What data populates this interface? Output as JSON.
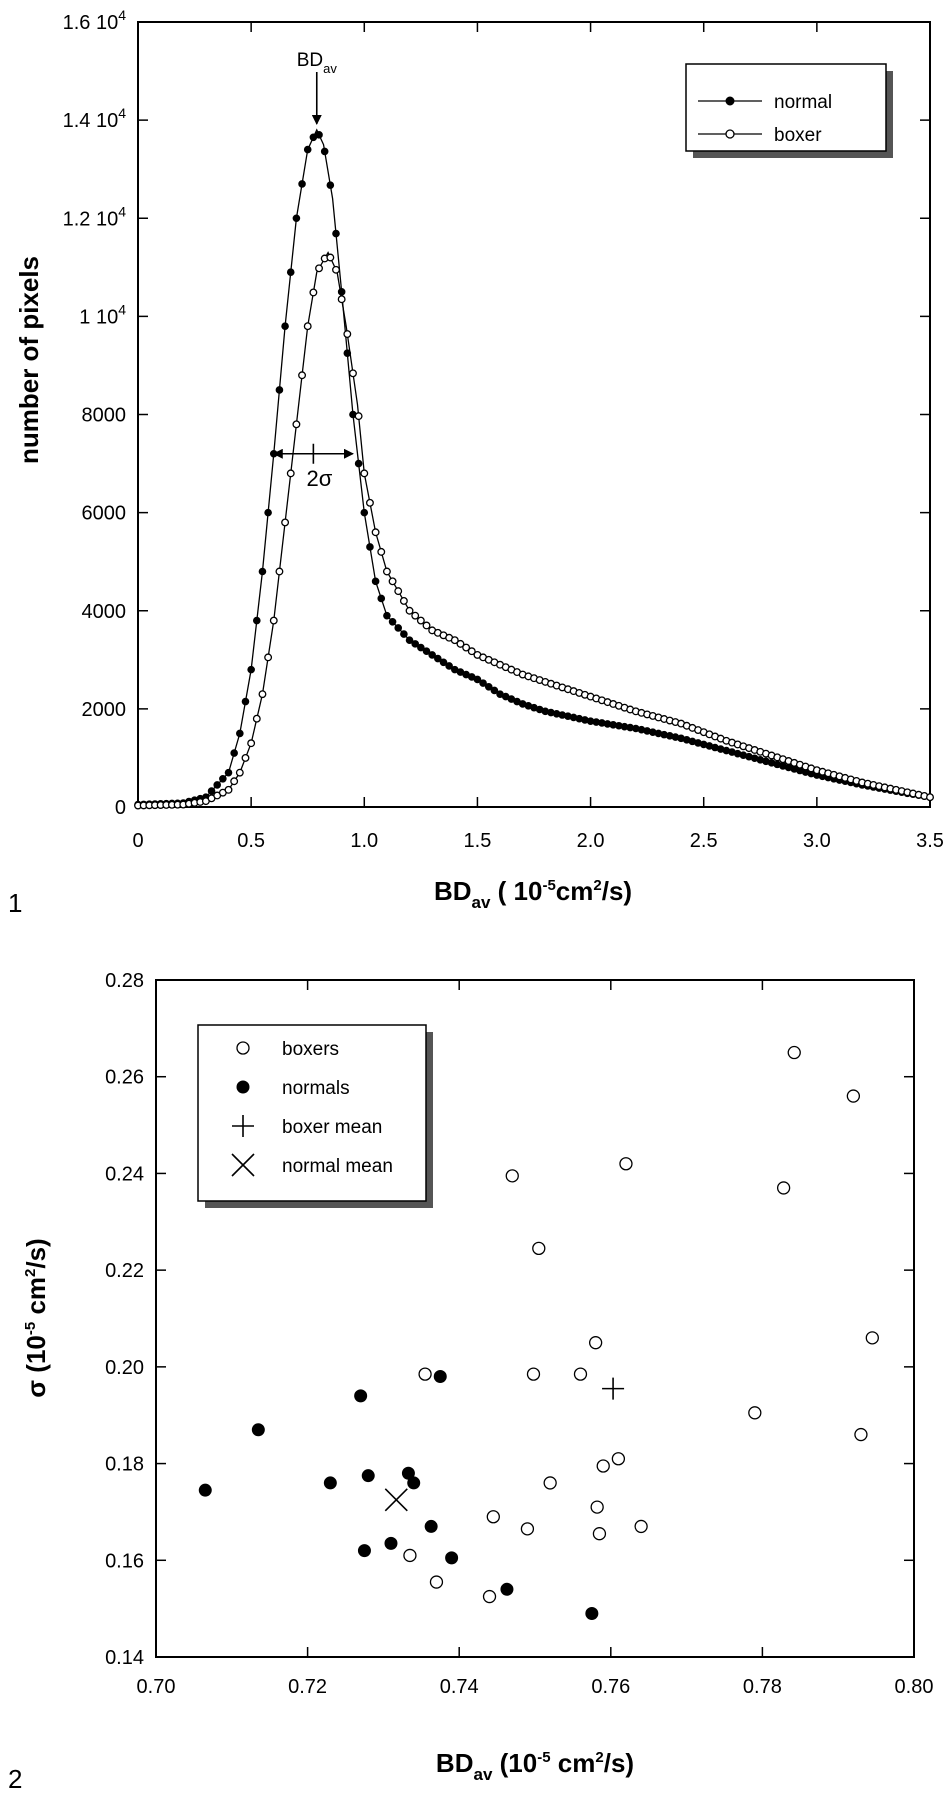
{
  "chart_data": [
    {
      "type": "line",
      "panel_label": "1",
      "xlabel": {
        "main": "BD",
        "sub": "av",
        "unit_pre": " ( 10",
        "unit_exp": "-5",
        "unit_mid": "cm",
        "unit_exp2": "2",
        "unit_post": "/s)"
      },
      "ylabel": "number of pixels",
      "xlim": [
        0,
        3.5
      ],
      "ylim": [
        0,
        16000
      ],
      "x_ticks": [
        {
          "v": 0,
          "label": "0"
        },
        {
          "v": 0.5,
          "label": "0.5"
        },
        {
          "v": 1.0,
          "label": "1.0"
        },
        {
          "v": 1.5,
          "label": "1.5"
        },
        {
          "v": 2.0,
          "label": "2.0"
        },
        {
          "v": 2.5,
          "label": "2.5"
        },
        {
          "v": 3.0,
          "label": "3.0"
        },
        {
          "v": 3.5,
          "label": "3.5"
        }
      ],
      "y_ticks": [
        {
          "v": 0,
          "label": "0"
        },
        {
          "v": 2000,
          "label": "2000"
        },
        {
          "v": 4000,
          "label": "4000"
        },
        {
          "v": 6000,
          "label": "6000"
        },
        {
          "v": 8000,
          "label": "8000"
        },
        {
          "v": 10000,
          "label": "1 10",
          "exp": "4"
        },
        {
          "v": 12000,
          "label": "1.2 10",
          "exp": "4"
        },
        {
          "v": 14000,
          "label": "1.4 10",
          "exp": "4"
        },
        {
          "v": 16000,
          "label": "1.6 10",
          "exp": "4"
        }
      ],
      "legend_position": "top-right",
      "series": [
        {
          "name": "normal",
          "marker": "filled-circle",
          "points": [
            [
              0,
              50
            ],
            [
              0.2,
              80
            ],
            [
              0.3,
              200
            ],
            [
              0.4,
              700
            ],
            [
              0.45,
              1500
            ],
            [
              0.5,
              2800
            ],
            [
              0.55,
              4800
            ],
            [
              0.6,
              7200
            ],
            [
              0.65,
              9800
            ],
            [
              0.7,
              12000
            ],
            [
              0.75,
              13400
            ],
            [
              0.79,
              13800
            ],
            [
              0.82,
              13500
            ],
            [
              0.86,
              12400
            ],
            [
              0.9,
              10500
            ],
            [
              0.95,
              8000
            ],
            [
              1.0,
              6000
            ],
            [
              1.05,
              4600
            ],
            [
              1.1,
              3900
            ],
            [
              1.2,
              3400
            ],
            [
              1.3,
              3100
            ],
            [
              1.4,
              2800
            ],
            [
              1.5,
              2600
            ],
            [
              1.6,
              2300
            ],
            [
              1.7,
              2100
            ],
            [
              1.8,
              1950
            ],
            [
              1.9,
              1850
            ],
            [
              2.0,
              1750
            ],
            [
              2.2,
              1600
            ],
            [
              2.4,
              1400
            ],
            [
              2.6,
              1150
            ],
            [
              2.8,
              900
            ],
            [
              3.0,
              650
            ],
            [
              3.2,
              450
            ],
            [
              3.4,
              280
            ],
            [
              3.5,
              200
            ]
          ]
        },
        {
          "name": "boxer",
          "marker": "open-circle",
          "points": [
            [
              0,
              30
            ],
            [
              0.2,
              50
            ],
            [
              0.3,
              120
            ],
            [
              0.4,
              350
            ],
            [
              0.45,
              700
            ],
            [
              0.5,
              1300
            ],
            [
              0.55,
              2300
            ],
            [
              0.6,
              3800
            ],
            [
              0.65,
              5800
            ],
            [
              0.7,
              7800
            ],
            [
              0.75,
              9800
            ],
            [
              0.79,
              10900
            ],
            [
              0.84,
              11300
            ],
            [
              0.88,
              10900
            ],
            [
              0.92,
              9800
            ],
            [
              0.97,
              8200
            ],
            [
              1.0,
              6800
            ],
            [
              1.05,
              5600
            ],
            [
              1.1,
              4800
            ],
            [
              1.2,
              4000
            ],
            [
              1.3,
              3600
            ],
            [
              1.4,
              3400
            ],
            [
              1.5,
              3100
            ],
            [
              1.6,
              2900
            ],
            [
              1.7,
              2700
            ],
            [
              1.8,
              2550
            ],
            [
              1.9,
              2400
            ],
            [
              2.0,
              2250
            ],
            [
              2.2,
              1950
            ],
            [
              2.4,
              1700
            ],
            [
              2.6,
              1350
            ],
            [
              2.8,
              1050
            ],
            [
              3.0,
              750
            ],
            [
              3.2,
              500
            ],
            [
              3.4,
              300
            ],
            [
              3.5,
              200
            ]
          ]
        }
      ],
      "annotations": {
        "peak_label_main": "BD",
        "peak_label_sub": "av",
        "peak_x": 0.79,
        "width_label_pre": "2",
        "width_label_sym": "σ",
        "width_range": [
          0.6,
          0.95
        ],
        "width_y": 7200
      }
    },
    {
      "type": "scatter",
      "panel_label": "2",
      "xlabel": {
        "main": "BD",
        "sub": "av",
        "unit_pre": " (10",
        "unit_exp": "-5",
        "unit_mid": " cm",
        "unit_exp2": "2",
        "unit_post": "/s)"
      },
      "ylabel": {
        "main": "σ",
        "unit_pre": " (10",
        "unit_exp": "-5",
        "unit_mid": " cm",
        "unit_exp2": "2",
        "unit_post": "/s)"
      },
      "xlim": [
        0.7,
        0.8
      ],
      "ylim": [
        0.14,
        0.28
      ],
      "x_ticks": [
        {
          "v": 0.7,
          "label": "0.70"
        },
        {
          "v": 0.72,
          "label": "0.72"
        },
        {
          "v": 0.74,
          "label": "0.74"
        },
        {
          "v": 0.76,
          "label": "0.76"
        },
        {
          "v": 0.78,
          "label": "0.78"
        },
        {
          "v": 0.8,
          "label": "0.80"
        }
      ],
      "y_ticks": [
        {
          "v": 0.14,
          "label": "0.14"
        },
        {
          "v": 0.16,
          "label": "0.16"
        },
        {
          "v": 0.18,
          "label": "0.18"
        },
        {
          "v": 0.2,
          "label": "0.20"
        },
        {
          "v": 0.22,
          "label": "0.22"
        },
        {
          "v": 0.24,
          "label": "0.24"
        },
        {
          "v": 0.26,
          "label": "0.26"
        },
        {
          "v": 0.28,
          "label": "0.28"
        }
      ],
      "legend_position": "top-left",
      "series": [
        {
          "name": "boxers",
          "marker": "open-circle",
          "points": [
            [
              0.7335,
              0.161
            ],
            [
              0.7355,
              0.1985
            ],
            [
              0.737,
              0.1555
            ],
            [
              0.744,
              0.1525
            ],
            [
              0.7445,
              0.169
            ],
            [
              0.747,
              0.2395
            ],
            [
              0.749,
              0.1665
            ],
            [
              0.7498,
              0.1985
            ],
            [
              0.7505,
              0.2245
            ],
            [
              0.752,
              0.176
            ],
            [
              0.756,
              0.1985
            ],
            [
              0.758,
              0.205
            ],
            [
              0.7582,
              0.171
            ],
            [
              0.7585,
              0.1655
            ],
            [
              0.759,
              0.1795
            ],
            [
              0.761,
              0.181
            ],
            [
              0.762,
              0.242
            ],
            [
              0.764,
              0.167
            ],
            [
              0.779,
              0.1905
            ],
            [
              0.7828,
              0.237
            ],
            [
              0.7842,
              0.265
            ],
            [
              0.792,
              0.256
            ],
            [
              0.793,
              0.186
            ],
            [
              0.7945,
              0.206
            ]
          ]
        },
        {
          "name": "normals",
          "marker": "filled-circle",
          "points": [
            [
              0.7065,
              0.1745
            ],
            [
              0.7135,
              0.187
            ],
            [
              0.723,
              0.176
            ],
            [
              0.727,
              0.194
            ],
            [
              0.7275,
              0.162
            ],
            [
              0.728,
              0.1775
            ],
            [
              0.731,
              0.1635
            ],
            [
              0.7333,
              0.178
            ],
            [
              0.734,
              0.176
            ],
            [
              0.7363,
              0.167
            ],
            [
              0.7375,
              0.198
            ],
            [
              0.739,
              0.1605
            ],
            [
              0.7463,
              0.154
            ],
            [
              0.7575,
              0.149
            ]
          ]
        },
        {
          "name": "boxer mean",
          "marker": "plus",
          "points": [
            [
              0.7603,
              0.1955
            ]
          ]
        },
        {
          "name": "normal mean",
          "marker": "x",
          "points": [
            [
              0.7317,
              0.1725
            ]
          ]
        }
      ]
    }
  ]
}
